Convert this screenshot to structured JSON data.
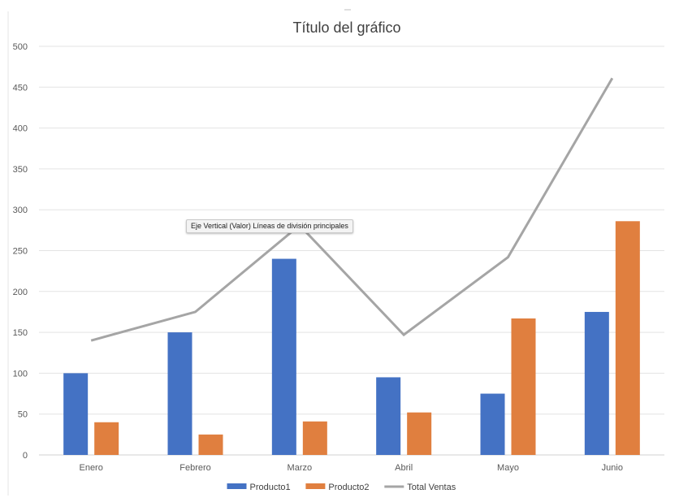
{
  "chart_data": {
    "type": "bar",
    "title": "Título del gráfico",
    "categories": [
      "Enero",
      "Febrero",
      "Marzo",
      "Abril",
      "Mayo",
      "Junio"
    ],
    "series": [
      {
        "name": "Producto1",
        "type": "bar",
        "color": "#4472c4",
        "values": [
          100,
          150,
          240,
          95,
          75,
          175
        ]
      },
      {
        "name": "Producto2",
        "type": "bar",
        "color": "#e07f3f",
        "values": [
          40,
          25,
          41,
          52,
          167,
          286
        ]
      },
      {
        "name": "Total Ventas",
        "type": "line",
        "color": "#a5a5a5",
        "values": [
          140,
          175,
          281,
          147,
          242,
          461
        ]
      }
    ],
    "ylim": [
      0,
      500
    ],
    "yticks": [
      0,
      50,
      100,
      150,
      200,
      250,
      300,
      350,
      400,
      450,
      500
    ],
    "grid": true,
    "legend_position": "bottom",
    "tooltip": "Eje Vertical (Valor)  Líneas de división principales"
  }
}
